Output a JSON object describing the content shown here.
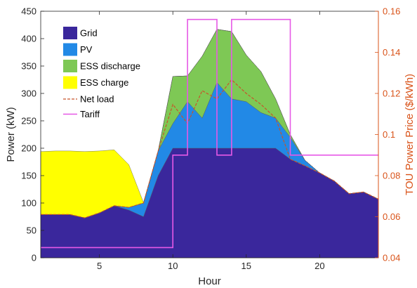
{
  "chart_data": {
    "type": "area",
    "title": "",
    "xlabel": "Hour",
    "ylabel": "Power (kW)",
    "y2label": "TOU Power Price ($/kWh)",
    "xlim": [
      1,
      24
    ],
    "ylim": [
      0,
      450
    ],
    "y2lim": [
      0.04,
      0.16
    ],
    "xticks": [
      5,
      10,
      15,
      20
    ],
    "yticks": [
      0,
      50,
      100,
      150,
      200,
      250,
      300,
      350,
      400,
      450
    ],
    "y2ticks": [
      "0.04",
      "0.06",
      "0.08",
      "0.1",
      "0.12",
      "0.14",
      "0.16"
    ],
    "grid": false,
    "legend_position": "top-left",
    "x": [
      1,
      2,
      3,
      4,
      5,
      6,
      7,
      8,
      9,
      10,
      11,
      12,
      13,
      14,
      15,
      16,
      17,
      18,
      19,
      20,
      21,
      22,
      23,
      24
    ],
    "series": [
      {
        "name": "Grid",
        "kind": "area",
        "color": "#3a279c",
        "values": [
          79,
          79,
          79,
          73,
          82,
          95,
          87,
          75,
          150,
          200,
          200,
          200,
          200,
          200,
          200,
          200,
          200,
          180,
          168,
          155,
          140,
          117,
          120,
          107
        ]
      },
      {
        "name": "PV",
        "kind": "area",
        "color": "#2289e6",
        "values": [
          0,
          0,
          0,
          0,
          0,
          0,
          5,
          25,
          45,
          45,
          85,
          55,
          120,
          90,
          85,
          65,
          55,
          40,
          10,
          0,
          0,
          0,
          0,
          0
        ]
      },
      {
        "name": "ESS discharge",
        "kind": "area",
        "color": "#7ec855",
        "values": [
          0,
          0,
          0,
          0,
          0,
          0,
          0,
          0,
          0,
          86,
          47,
          113,
          97,
          123,
          85,
          75,
          35,
          5,
          0,
          0,
          0,
          0,
          0,
          0
        ]
      },
      {
        "name": "ESS charge",
        "kind": "area",
        "color": "#ffff00",
        "values": [
          115,
          116,
          116,
          121,
          113,
          102,
          78,
          1,
          0,
          0,
          0,
          0,
          0,
          0,
          0,
          0,
          0,
          0,
          0,
          0,
          0,
          0,
          0,
          0
        ]
      },
      {
        "name": "Net load",
        "kind": "line",
        "axis": "left",
        "color": "#c8542a",
        "values": [
          79,
          79,
          79,
          73,
          82,
          95,
          92,
          100,
          195,
          280,
          245,
          305,
          290,
          325,
          300,
          280,
          255,
          180,
          168,
          155,
          140,
          117,
          120,
          107
        ]
      },
      {
        "name": "Tariff",
        "kind": "step",
        "axis": "right",
        "color": "#e659e6",
        "x": [
          1,
          10,
          10,
          11,
          11,
          13,
          13,
          14,
          14,
          18,
          18,
          24
        ],
        "values": [
          0.045,
          0.045,
          0.09,
          0.09,
          0.156,
          0.156,
          0.09,
          0.09,
          0.156,
          0.156,
          0.09,
          0.09
        ]
      }
    ]
  }
}
